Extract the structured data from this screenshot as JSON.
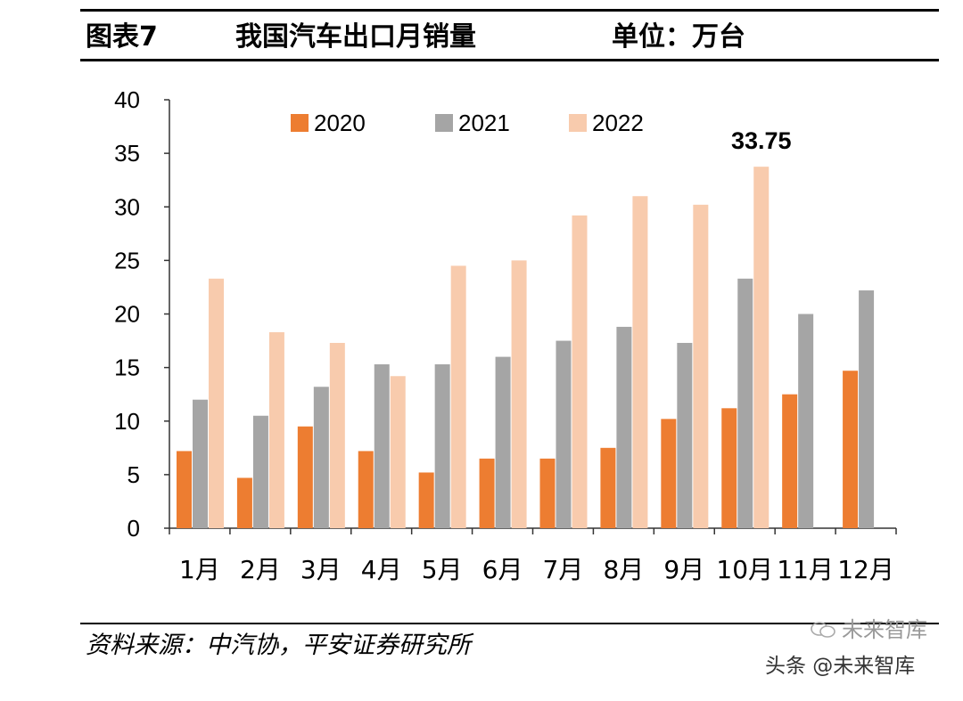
{
  "figure": {
    "number": "图表7",
    "title": "我国汽车出口月销量",
    "unit": "单位：万台"
  },
  "chart_data": {
    "type": "bar",
    "title": "我国汽车出口月销量",
    "xlabel": "",
    "ylabel": "",
    "ylim": [
      0,
      40
    ],
    "yticks": [
      "0",
      "5",
      "10",
      "15",
      "20",
      "25",
      "30",
      "35",
      "40"
    ],
    "legend_position": "top-center",
    "categories": [
      "1月",
      "2月",
      "3月",
      "4月",
      "5月",
      "6月",
      "7月",
      "8月",
      "9月",
      "10月",
      "11月",
      "12月"
    ],
    "series": [
      {
        "name": "2020",
        "color": "#ED7D31",
        "values": [
          7.2,
          4.7,
          9.5,
          7.2,
          5.2,
          6.5,
          6.5,
          7.5,
          10.2,
          11.2,
          12.5,
          14.7
        ]
      },
      {
        "name": "2021",
        "color": "#A5A5A5",
        "values": [
          12.0,
          10.5,
          13.2,
          15.3,
          15.3,
          16.0,
          17.5,
          18.8,
          17.3,
          23.3,
          20.0,
          22.2
        ]
      },
      {
        "name": "2022",
        "color": "#F8CBAD",
        "values": [
          23.3,
          18.3,
          17.3,
          14.2,
          24.5,
          25.0,
          29.2,
          31.0,
          30.2,
          33.75,
          null,
          null
        ]
      }
    ],
    "annotations": [
      {
        "text": "33.75",
        "series": "2022",
        "category": "10月"
      }
    ]
  },
  "footer": {
    "source": "资料来源：中汽协，平安证券研究所"
  },
  "watermark": {
    "text": "头条 @未来智库",
    "faded_text": "未来智库"
  }
}
